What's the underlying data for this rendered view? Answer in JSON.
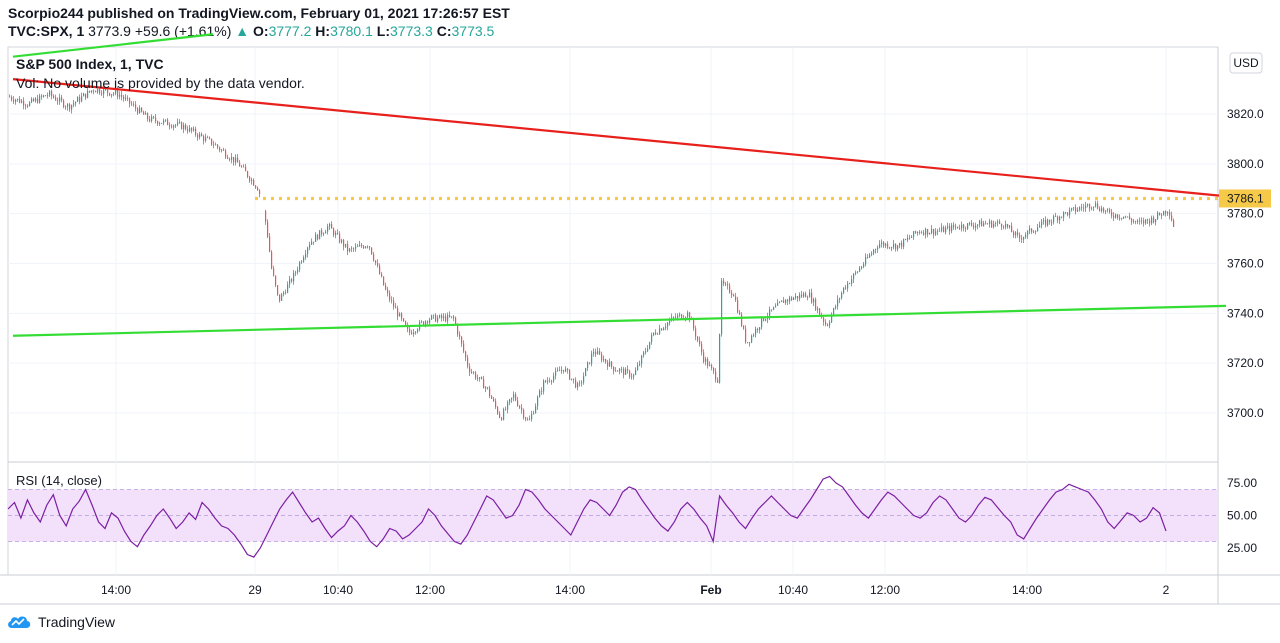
{
  "header": {
    "publisher_line": "Scorpio244 published on TradingView.com, February 01, 2021 17:26:57 EST",
    "symbol": "TVC:SPX, 1",
    "last": "3773.9",
    "change_arrow": "▲",
    "change": "+59.6 (+1.61%)",
    "o_label": "O:",
    "o_value": "3777.2",
    "h_label": "H:",
    "h_value": "3780.1",
    "l_label": "L:",
    "l_value": "3773.3",
    "c_label": "C:",
    "c_value": "3773.5"
  },
  "brand": {
    "name": "TradingView"
  },
  "colors": {
    "up": "#26a69a",
    "down": "#ef5350",
    "red_trend": "#e8201c",
    "green_trend": "#33dd33",
    "dotted_level": "#f7c948",
    "rsi_line": "#7b1fa2",
    "rsi_band": "#f3e0fb"
  },
  "chart_data": [
    {
      "type": "candlestick",
      "title": "S&P 500 Index, 1, TVC",
      "volume_note": "Vol: No volume is provided by the data vendor.",
      "currency": "USD",
      "y_ticks": [
        3700,
        3720,
        3740,
        3760,
        3780,
        3800,
        3820
      ],
      "y_tick_labels": [
        "3700.0",
        "3720.0",
        "3740.0",
        "3760.0",
        "3780.0",
        "3800.0",
        "3820.0"
      ],
      "ylim": [
        3680,
        3845
      ],
      "x_ticks": [
        "14:00",
        "29",
        "10:40",
        "12:00",
        "14:00",
        "Feb",
        "10:40",
        "12:00",
        "14:00",
        "2"
      ],
      "price_path": [
        {
          "t": 0,
          "p": 3827
        },
        {
          "t": 20,
          "p": 3824
        },
        {
          "t": 40,
          "p": 3828
        },
        {
          "t": 60,
          "p": 3823
        },
        {
          "t": 85,
          "p": 3830
        },
        {
          "t": 110,
          "p": 3828
        },
        {
          "t": 140,
          "p": 3818
        },
        {
          "t": 175,
          "p": 3815
        },
        {
          "t": 205,
          "p": 3808
        },
        {
          "t": 230,
          "p": 3800
        },
        {
          "t": 250,
          "p": 3790
        },
        {
          "t": 258,
          "p": 3775
        },
        {
          "t": 263,
          "p": 3758
        },
        {
          "t": 270,
          "p": 3745
        },
        {
          "t": 285,
          "p": 3755
        },
        {
          "t": 300,
          "p": 3768
        },
        {
          "t": 320,
          "p": 3775
        },
        {
          "t": 340,
          "p": 3765
        },
        {
          "t": 360,
          "p": 3768
        },
        {
          "t": 378,
          "p": 3748
        },
        {
          "t": 400,
          "p": 3732
        },
        {
          "t": 420,
          "p": 3738
        },
        {
          "t": 445,
          "p": 3738
        },
        {
          "t": 460,
          "p": 3718
        },
        {
          "t": 478,
          "p": 3710
        },
        {
          "t": 492,
          "p": 3698
        },
        {
          "t": 505,
          "p": 3707
        },
        {
          "t": 520,
          "p": 3696
        },
        {
          "t": 535,
          "p": 3712
        },
        {
          "t": 555,
          "p": 3718
        },
        {
          "t": 570,
          "p": 3710
        },
        {
          "t": 585,
          "p": 3725
        },
        {
          "t": 605,
          "p": 3718
        },
        {
          "t": 625,
          "p": 3715
        },
        {
          "t": 645,
          "p": 3732
        },
        {
          "t": 665,
          "p": 3738
        },
        {
          "t": 680,
          "p": 3740
        },
        {
          "t": 695,
          "p": 3722
        },
        {
          "t": 710,
          "p": 3713
        },
        {
          "t": 712,
          "p": 3752
        },
        {
          "t": 725,
          "p": 3748
        },
        {
          "t": 738,
          "p": 3728
        },
        {
          "t": 755,
          "p": 3738
        },
        {
          "t": 775,
          "p": 3745
        },
        {
          "t": 800,
          "p": 3748
        },
        {
          "t": 818,
          "p": 3735
        },
        {
          "t": 835,
          "p": 3750
        },
        {
          "t": 855,
          "p": 3760
        },
        {
          "t": 870,
          "p": 3768
        },
        {
          "t": 890,
          "p": 3767
        },
        {
          "t": 910,
          "p": 3773
        },
        {
          "t": 930,
          "p": 3773
        },
        {
          "t": 950,
          "p": 3775
        },
        {
          "t": 975,
          "p": 3776
        },
        {
          "t": 995,
          "p": 3776
        },
        {
          "t": 1010,
          "p": 3770
        },
        {
          "t": 1030,
          "p": 3775
        },
        {
          "t": 1050,
          "p": 3779
        },
        {
          "t": 1070,
          "p": 3782
        },
        {
          "t": 1085,
          "p": 3784
        },
        {
          "t": 1100,
          "p": 3780
        },
        {
          "t": 1115,
          "p": 3779
        },
        {
          "t": 1130,
          "p": 3776
        },
        {
          "t": 1145,
          "p": 3778
        },
        {
          "t": 1160,
          "p": 3782
        },
        {
          "t": 1166,
          "p": 3774
        }
      ],
      "horizontal_level": {
        "value": 3786.1,
        "label": "3786.1",
        "style": "dotted"
      },
      "trendlines": [
        {
          "name": "red-trendline",
          "from": {
            "t": 5,
            "p": 3834
          },
          "to": {
            "t": 1218,
            "p": 3787
          }
        },
        {
          "name": "green-trendline",
          "from": {
            "t": 5,
            "p": 3731
          },
          "to": {
            "t": 1218,
            "p": 3743
          }
        },
        {
          "name": "green-trendline-upper",
          "from": {
            "t": 5,
            "p": 3843
          },
          "to": {
            "t": 205,
            "p": 3852
          }
        }
      ]
    },
    {
      "type": "line",
      "title": "RSI (14, close)",
      "y_ticks": [
        25,
        50,
        75
      ],
      "y_tick_labels": [
        "25.00",
        "50.00",
        "75.00"
      ],
      "ylim": [
        5,
        85
      ],
      "band": [
        30,
        70
      ],
      "values": [
        55,
        60,
        48,
        62,
        52,
        45,
        58,
        66,
        50,
        42,
        55,
        61,
        70,
        58,
        45,
        40,
        52,
        48,
        38,
        30,
        26,
        35,
        42,
        50,
        55,
        48,
        40,
        45,
        52,
        47,
        60,
        55,
        48,
        42,
        40,
        35,
        28,
        20,
        18,
        25,
        35,
        45,
        55,
        62,
        68,
        60,
        52,
        45,
        48,
        40,
        33,
        38,
        42,
        50,
        45,
        38,
        30,
        26,
        32,
        40,
        38,
        32,
        35,
        40,
        45,
        55,
        50,
        42,
        36,
        30,
        28,
        35,
        45,
        55,
        65,
        62,
        55,
        48,
        50,
        58,
        70,
        68,
        62,
        55,
        50,
        45,
        40,
        35,
        45,
        55,
        62,
        60,
        55,
        50,
        58,
        68,
        72,
        70,
        62,
        55,
        48,
        42,
        38,
        45,
        55,
        60,
        55,
        48,
        42,
        30,
        65,
        58,
        52,
        45,
        40,
        48,
        55,
        60,
        65,
        60,
        55,
        50,
        48,
        55,
        62,
        70,
        78,
        80,
        75,
        72,
        65,
        58,
        52,
        48,
        55,
        62,
        68,
        65,
        60,
        55,
        50,
        48,
        52,
        60,
        65,
        62,
        55,
        48,
        45,
        50,
        58,
        64,
        62,
        56,
        50,
        45,
        35,
        32,
        40,
        48,
        55,
        62,
        68,
        70,
        74,
        72,
        70,
        68,
        62,
        55,
        45,
        40,
        46,
        52,
        50,
        45,
        48,
        56,
        52,
        38
      ]
    }
  ]
}
